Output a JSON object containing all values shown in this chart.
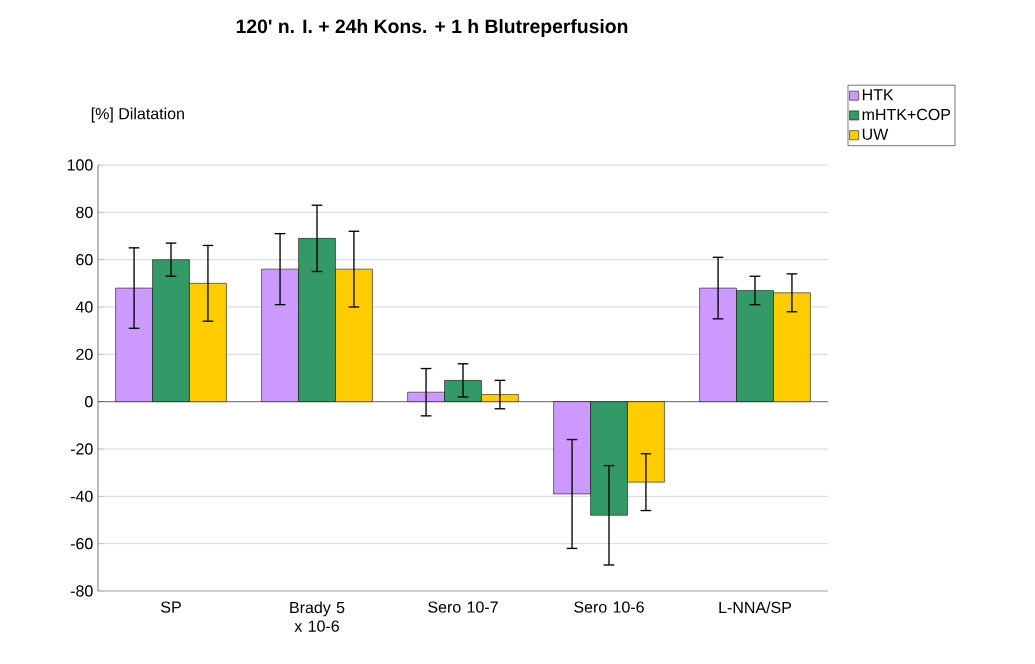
{
  "chart_data": {
    "type": "bar",
    "title": "120' n. I. + 24h Kons. + 1 h Blutreperfusion",
    "ylabel": "[%] Dilatation",
    "categories": [
      "SP",
      "Brady 5 x 10-6",
      "Sero 10-7",
      "Sero 10-6",
      "L-NNA/SP"
    ],
    "series": [
      {
        "name": "HTK",
        "color": "#cc99ff",
        "values": [
          48,
          56,
          4,
          -39,
          48
        ],
        "errors": [
          17,
          15,
          10,
          23,
          13
        ]
      },
      {
        "name": "mHTK+COP",
        "color": "#339966",
        "values": [
          60,
          69,
          9,
          -48,
          47
        ],
        "errors": [
          7,
          14,
          7,
          21,
          6
        ]
      },
      {
        "name": "UW",
        "color": "#ffcc00",
        "values": [
          50,
          56,
          3,
          -34,
          46
        ],
        "errors": [
          16,
          16,
          6,
          12,
          8
        ]
      }
    ],
    "ylim": [
      -80,
      100
    ],
    "yticks": [
      -80,
      -60,
      -40,
      -20,
      0,
      20,
      40,
      60,
      80,
      100
    ],
    "grid": "y",
    "legend": "top right"
  }
}
